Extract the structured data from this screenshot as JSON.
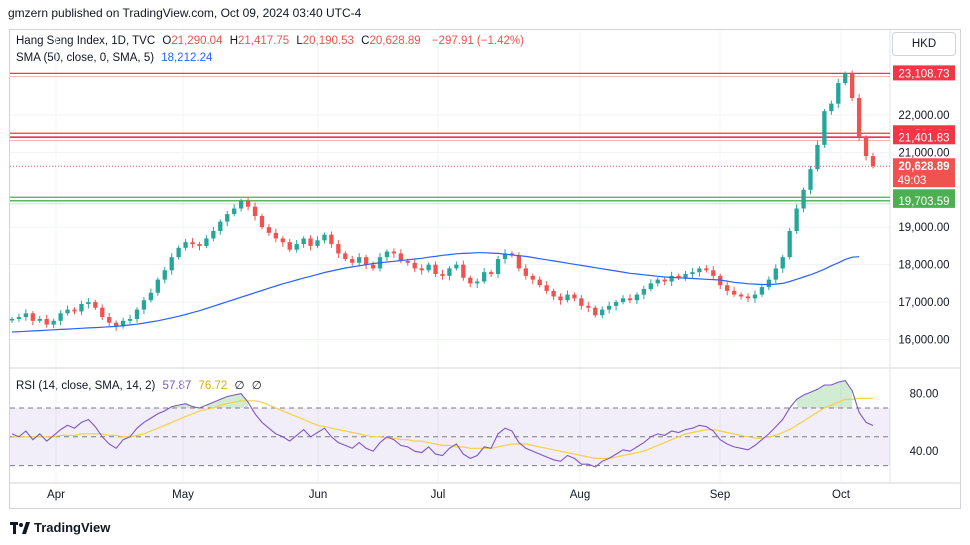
{
  "header": {
    "publisher_text": "gmzern published on TradingView.com, Oct 09, 2024 03:40 UTC-4"
  },
  "legend": {
    "symbol": "Hang Seng Index, 1D, TVC",
    "open_label": "O",
    "open": "21,290.04",
    "high_label": "H",
    "high": "21,417.75",
    "low_label": "L",
    "low": "20,190.53",
    "close_label": "C",
    "close": "20,628.89",
    "change": "−297.91 (−1.42%)",
    "sma_label": "SMA (50, close, 0, SMA, 5)",
    "sma_value": "18,212.24"
  },
  "rsi_legend": {
    "label": "RSI (14, close, SMA, 14, 2)",
    "rsi_value": "57.87",
    "rsi_ma_value": "76.72",
    "extra1": "∅",
    "extra2": "∅"
  },
  "currency_button": "HKD",
  "footer": {
    "brand": "TradingView"
  },
  "colors": {
    "up": "#26a69a",
    "down": "#ef5350",
    "sma": "#2962ff",
    "rsi": "#7e57c2",
    "rsi_ma": "#f5d142",
    "resistance": "#f23645",
    "support": "#4caf50"
  },
  "chart_data": [
    {
      "type": "candlestick",
      "title": "",
      "y_ticks": [
        "16,000.00",
        "17,000.00",
        "18,000.00",
        "19,000.00",
        "21,000.00",
        "22,000.00"
      ],
      "x_ticks": [
        "Apr",
        "May",
        "Jun",
        "Jul",
        "Aug",
        "Sep",
        "Oct"
      ],
      "ylim": [
        15400,
        23600
      ],
      "horizontal_levels": [
        {
          "value": 23108.73,
          "label": "23,108.73",
          "kind": "resistance"
        },
        {
          "value": 21509.86,
          "label": "21,509.86",
          "kind": "resistance"
        },
        {
          "value": 21401.83,
          "label": "21,401.83",
          "kind": "resistance"
        },
        {
          "value": 19800.24,
          "label": "19,800.24",
          "kind": "support"
        },
        {
          "value": 19703.59,
          "label": "19,703.59",
          "kind": "support"
        }
      ],
      "last_price": {
        "value": 20628.89,
        "label": "20,628.89",
        "countdown": "49:03"
      },
      "series": [
        {
          "name": "Hang Seng Index",
          "close": [
            16550,
            16600,
            16700,
            16500,
            16550,
            16400,
            16500,
            16700,
            16800,
            16750,
            16950,
            17000,
            16850,
            16600,
            16450,
            16350,
            16500,
            16550,
            16800,
            17050,
            17250,
            17600,
            17850,
            18200,
            18450,
            18600,
            18550,
            18500,
            18700,
            18900,
            19150,
            19350,
            19500,
            19700,
            19550,
            19300,
            19000,
            18850,
            18700,
            18600,
            18400,
            18550,
            18700,
            18500,
            18650,
            18800,
            18550,
            18300,
            18150,
            18050,
            18200,
            18000,
            17900,
            18200,
            18350,
            18300,
            18100,
            18050,
            17900,
            17850,
            18000,
            17750,
            17700,
            17900,
            18000,
            17650,
            17500,
            17550,
            17800,
            17750,
            18150,
            18300,
            18250,
            17900,
            17700,
            17600,
            17450,
            17300,
            17150,
            17050,
            17200,
            17100,
            16900,
            16850,
            16650,
            16800,
            16900,
            17000,
            17100,
            17050,
            17200,
            17350,
            17500,
            17600,
            17550,
            17700,
            17650,
            17750,
            17800,
            17900,
            17850,
            17700,
            17450,
            17300,
            17200,
            17150,
            17100,
            17200,
            17400,
            17600,
            17900,
            18200,
            18900,
            19500,
            20000,
            20550,
            21200,
            22100,
            22300,
            22850,
            23100,
            22450,
            21400,
            20900,
            20628.89
          ]
        },
        {
          "name": "SMA (50, close, 0, SMA, 5)",
          "values": [
            16200,
            16210,
            16220,
            16230,
            16240,
            16250,
            16260,
            16270,
            16280,
            16290,
            16300,
            16310,
            16320,
            16330,
            16340,
            16350,
            16370,
            16390,
            16410,
            16440,
            16470,
            16500,
            16540,
            16580,
            16620,
            16670,
            16720,
            16770,
            16830,
            16890,
            16950,
            17010,
            17070,
            17130,
            17190,
            17250,
            17310,
            17370,
            17430,
            17490,
            17540,
            17590,
            17640,
            17690,
            17740,
            17790,
            17830,
            17870,
            17910,
            17940,
            17970,
            18000,
            18030,
            18050,
            18070,
            18090,
            18110,
            18130,
            18150,
            18170,
            18200,
            18220,
            18250,
            18270,
            18290,
            18300,
            18310,
            18320,
            18320,
            18310,
            18300,
            18280,
            18260,
            18240,
            18220,
            18190,
            18160,
            18130,
            18100,
            18070,
            18040,
            18010,
            17980,
            17950,
            17920,
            17890,
            17860,
            17830,
            17800,
            17770,
            17750,
            17730,
            17710,
            17690,
            17670,
            17660,
            17650,
            17640,
            17630,
            17620,
            17610,
            17600,
            17590,
            17560,
            17530,
            17510,
            17490,
            17480,
            17470,
            17470,
            17480,
            17500,
            17550,
            17610,
            17670,
            17730,
            17800,
            17880,
            17970,
            18050,
            18140,
            18200,
            18212.24
          ]
        }
      ]
    },
    {
      "type": "line",
      "title": "",
      "y_ticks": [
        "40.00",
        "80.00"
      ],
      "ylim": [
        20,
        95
      ],
      "bands": {
        "upper": 70,
        "middle": 50,
        "lower": 30
      },
      "series": [
        {
          "name": "RSI",
          "values": [
            52,
            50,
            54,
            48,
            52,
            47,
            51,
            55,
            58,
            56,
            60,
            62,
            57,
            50,
            45,
            42,
            48,
            50,
            56,
            60,
            63,
            66,
            68,
            71,
            72,
            73,
            71,
            70,
            72,
            74,
            76,
            78,
            79,
            80,
            74,
            66,
            60,
            56,
            52,
            50,
            47,
            51,
            55,
            50,
            53,
            56,
            50,
            46,
            44,
            42,
            46,
            42,
            40,
            46,
            50,
            48,
            44,
            43,
            40,
            39,
            43,
            38,
            37,
            42,
            45,
            38,
            35,
            37,
            43,
            42,
            52,
            56,
            54,
            46,
            42,
            40,
            38,
            36,
            34,
            33,
            37,
            35,
            31,
            31,
            29,
            33,
            35,
            38,
            41,
            40,
            43,
            46,
            50,
            52,
            51,
            54,
            53,
            55,
            56,
            58,
            57,
            54,
            48,
            45,
            43,
            42,
            41,
            44,
            48,
            52,
            57,
            62,
            70,
            76,
            79,
            81,
            83,
            86,
            86,
            88,
            89,
            82,
            67,
            60,
            57.87
          ]
        },
        {
          "name": "RSI MA",
          "values": [
            50,
            50,
            50,
            50,
            50,
            50,
            50,
            51,
            51,
            51,
            52,
            52,
            52,
            52,
            51,
            51,
            50,
            50,
            51,
            52,
            54,
            56,
            58,
            60,
            62,
            64,
            66,
            68,
            69,
            70,
            72,
            73,
            74,
            75,
            75,
            75,
            74,
            72,
            70,
            68,
            66,
            64,
            62,
            60,
            58,
            57,
            56,
            55,
            54,
            53,
            52,
            51,
            50,
            50,
            49,
            49,
            48,
            48,
            47,
            47,
            46,
            45,
            44,
            44,
            43,
            43,
            42,
            42,
            42,
            42,
            43,
            44,
            45,
            45,
            45,
            44,
            43,
            42,
            41,
            40,
            39,
            38,
            37,
            36,
            35,
            35,
            35,
            36,
            37,
            38,
            39,
            40,
            42,
            44,
            46,
            48,
            50,
            52,
            53,
            54,
            55,
            55,
            54,
            53,
            52,
            51,
            50,
            49,
            49,
            50,
            51,
            53,
            55,
            58,
            61,
            64,
            67,
            70,
            72,
            74,
            76,
            76,
            76.72,
            76.72,
            76.72
          ]
        }
      ]
    }
  ]
}
